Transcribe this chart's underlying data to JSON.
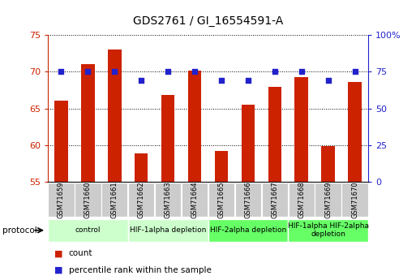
{
  "title": "GDS2761 / GI_16554591-A",
  "samples": [
    "GSM71659",
    "GSM71660",
    "GSM71661",
    "GSM71662",
    "GSM71663",
    "GSM71664",
    "GSM71665",
    "GSM71666",
    "GSM71667",
    "GSM71668",
    "GSM71669",
    "GSM71670"
  ],
  "counts": [
    66.1,
    71.0,
    73.0,
    58.9,
    66.8,
    70.2,
    59.2,
    65.5,
    67.9,
    69.3,
    59.9,
    68.6
  ],
  "percentile_ranks": [
    75,
    75,
    75,
    69,
    75,
    75,
    69,
    69,
    75,
    75,
    69,
    75
  ],
  "ylim_left": [
    55,
    75
  ],
  "ylim_right": [
    0,
    100
  ],
  "yticks_left": [
    55,
    60,
    65,
    70,
    75
  ],
  "yticks_right": [
    0,
    25,
    50,
    75,
    100
  ],
  "ytick_labels_right": [
    "0",
    "25",
    "50",
    "75",
    "100%"
  ],
  "bar_color": "#cc2200",
  "dot_color": "#2222cc",
  "protocol_groups": [
    {
      "label": "control",
      "indices": [
        0,
        1,
        2
      ],
      "color": "#ccffcc"
    },
    {
      "label": "HIF-1alpha depletion",
      "indices": [
        3,
        4,
        5
      ],
      "color": "#ccffcc"
    },
    {
      "label": "HIF-2alpha depletion",
      "indices": [
        6,
        7,
        8
      ],
      "color": "#66ff66"
    },
    {
      "label": "HIF-1alpha HIF-2alpha\ndepletion",
      "indices": [
        9,
        10,
        11
      ],
      "color": "#66ff66"
    }
  ],
  "legend_items": [
    {
      "label": "count",
      "color": "#cc2200"
    },
    {
      "label": "percentile rank within the sample",
      "color": "#2222cc"
    }
  ],
  "background_color": "#ffffff",
  "tick_label_color_left": "#cc2200",
  "tick_label_color_right": "#2222cc",
  "bar_width": 0.5,
  "xtick_bg_color": "#cccccc"
}
